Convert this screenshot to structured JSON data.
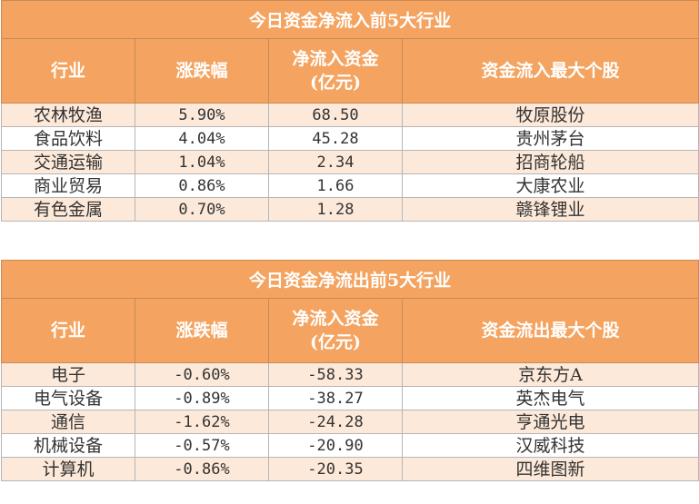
{
  "inflow": {
    "title": "今日资金净流入前5大行业",
    "headers": [
      "行业",
      "涨跌幅",
      "净流入资金\n(亿元)",
      "资金流入最大个股"
    ],
    "rows": [
      {
        "industry": "农林牧渔",
        "change": "5.90%",
        "net": "68.50",
        "stock": "牧原股份"
      },
      {
        "industry": "食品饮料",
        "change": "4.04%",
        "net": "45.28",
        "stock": "贵州茅台"
      },
      {
        "industry": "交通运输",
        "change": "1.04%",
        "net": "2.34",
        "stock": "招商轮船"
      },
      {
        "industry": "商业贸易",
        "change": "0.86%",
        "net": "1.66",
        "stock": "大康农业"
      },
      {
        "industry": "有色金属",
        "change": "0.70%",
        "net": "1.28",
        "stock": "赣锋锂业"
      }
    ]
  },
  "outflow": {
    "title": "今日资金净流出前5大行业",
    "headers": [
      "行业",
      "涨跌幅",
      "净流入资金\n(亿元)",
      "资金流出最大个股"
    ],
    "rows": [
      {
        "industry": "电子",
        "change": "-0.60%",
        "net": "-58.33",
        "stock": "京东方A"
      },
      {
        "industry": "电气设备",
        "change": "-0.89%",
        "net": "-38.27",
        "stock": "英杰电气"
      },
      {
        "industry": "通信",
        "change": "-1.62%",
        "net": "-24.28",
        "stock": "亨通光电"
      },
      {
        "industry": "机械设备",
        "change": "-0.57%",
        "net": "-20.90",
        "stock": "汉威科技"
      },
      {
        "industry": "计算机",
        "change": "-0.86%",
        "net": "-20.35",
        "stock": "四维图新"
      }
    ]
  },
  "colors": {
    "header_bg": "#f4a460",
    "header_text": "#ffffff",
    "row_alt_bg": "#fde9d9"
  }
}
